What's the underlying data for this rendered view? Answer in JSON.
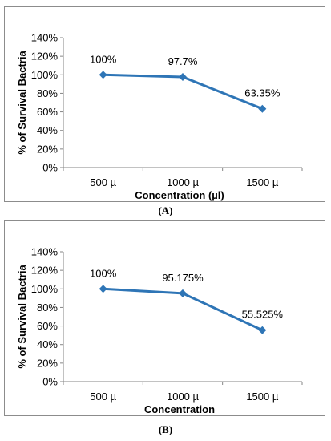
{
  "chart_data": [
    {
      "type": "line",
      "categories": [
        "500 µ",
        "1000 µ",
        "1500 µ"
      ],
      "series": [
        {
          "values": [
            100,
            97.7,
            63.35
          ],
          "color": "#2e75b6"
        }
      ],
      "data_labels": [
        "100%",
        "97.7%",
        "63.35%"
      ],
      "xlabel": "Concentration (µl)",
      "ylabel": "% of Survival Bactria",
      "ylim": [
        0,
        140
      ],
      "yticks": [
        "0%",
        "20%",
        "40%",
        "60%",
        "80%",
        "100%",
        "120%",
        "140%"
      ],
      "grid": false,
      "panel_label": "(A)"
    },
    {
      "type": "line",
      "categories": [
        "500 µ",
        "1000 µ",
        "1500 µ"
      ],
      "series": [
        {
          "values": [
            100,
            95.175,
            55.525
          ],
          "color": "#2e75b6"
        }
      ],
      "data_labels": [
        "100%",
        "95.175%",
        "55.525%"
      ],
      "xlabel": "Concentration",
      "ylabel": "% of Survival Bactria",
      "ylim": [
        0,
        140
      ],
      "yticks": [
        "0%",
        "20%",
        "40%",
        "60%",
        "80%",
        "100%",
        "120%",
        "140%"
      ],
      "grid": false,
      "panel_label": "(B)"
    }
  ]
}
